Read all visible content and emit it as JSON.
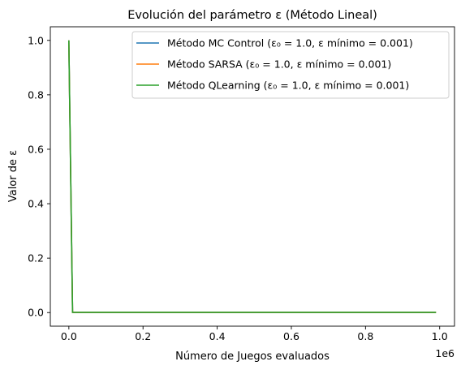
{
  "chart_data": {
    "type": "line",
    "title": "Evolución del parámetro ε (Método Lineal)",
    "xlabel": "Número de Juegos evaluados",
    "ylabel": "Valor de ε",
    "x_offset_label": "1e6",
    "xlim": [
      -50000,
      1040000
    ],
    "ylim": [
      -0.05,
      1.05
    ],
    "x_ticks": [
      0,
      200000,
      400000,
      600000,
      800000,
      1000000
    ],
    "x_tick_labels": [
      "0.0",
      "0.2",
      "0.4",
      "0.6",
      "0.8",
      "1.0"
    ],
    "y_ticks": [
      0,
      0.2,
      0.4,
      0.6,
      0.8,
      1.0
    ],
    "y_tick_labels": [
      "0.0",
      "0.2",
      "0.4",
      "0.6",
      "0.8",
      "1.0"
    ],
    "grid": false,
    "legend_position": "top-right",
    "series": [
      {
        "name": "Método MC Control (ε₀ = 1.0, ε mínimo = 0.001)",
        "color": "#1f77b4",
        "x": [
          0,
          10000,
          990000
        ],
        "y": [
          1.0,
          0.001,
          0.001
        ]
      },
      {
        "name": "Método SARSA (ε₀ = 1.0, ε mínimo = 0.001)",
        "color": "#ff7f0e",
        "x": [
          0,
          10000,
          990000
        ],
        "y": [
          1.0,
          0.001,
          0.001
        ]
      },
      {
        "name": "Método QLearning (ε₀ = 1.0, ε mínimo = 0.001)",
        "color": "#2ca02c",
        "x": [
          0,
          10000,
          990000
        ],
        "y": [
          1.0,
          0.001,
          0.001
        ]
      }
    ]
  }
}
